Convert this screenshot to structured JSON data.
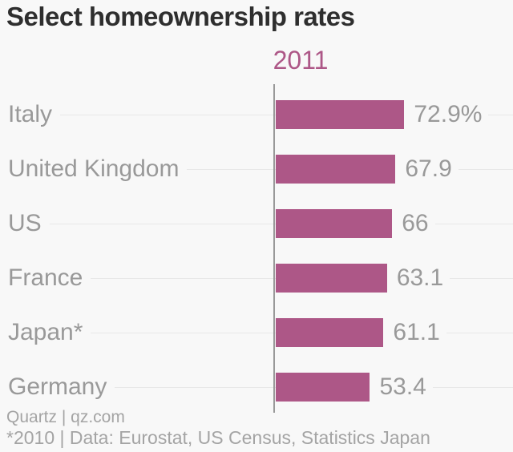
{
  "chart_data": {
    "type": "bar",
    "orientation": "horizontal",
    "title": "Select homeownership rates",
    "series_label": "2011",
    "categories": [
      "Italy",
      "United Kingdom",
      "US",
      "France",
      "Japan*",
      "Germany"
    ],
    "values": [
      72.9,
      67.9,
      66,
      63.1,
      61.1,
      53.4
    ],
    "value_labels": [
      "72.9%",
      "67.9",
      "66",
      "63.1",
      "61.1",
      "53.4"
    ],
    "xlabel": "",
    "ylabel": "",
    "xlim": [
      0,
      75
    ],
    "grid": "row-leader-lines",
    "legend_position": "top-center-above-bars"
  },
  "footer": {
    "credit": "Quartz | qz.com",
    "source": "*2010 | Data: Eurostat, US Census, Statistics Japan"
  },
  "colors": {
    "accent": "#ad5787",
    "background": "#f8f8f8",
    "title": "#2e2e2e",
    "label": "#999999",
    "axis": "#999999",
    "grid": "#e8e8e8",
    "footer": "#a4a4a4"
  }
}
